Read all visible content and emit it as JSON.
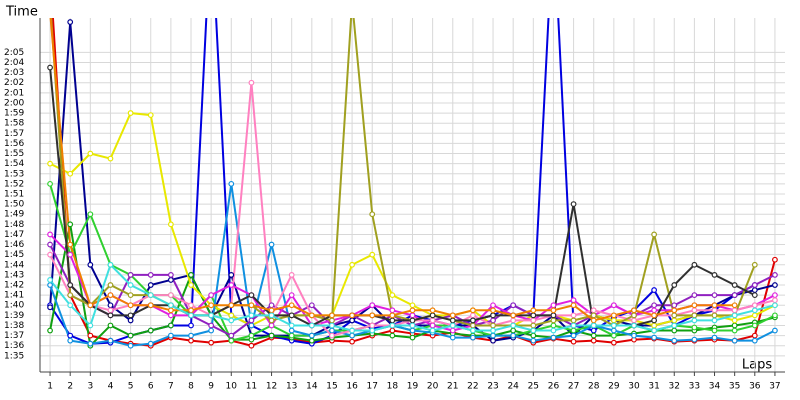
{
  "chart_data": {
    "type": "line",
    "y_label": "Time",
    "x_label": "Laps",
    "x": [
      1,
      2,
      3,
      4,
      5,
      6,
      7,
      8,
      9,
      10,
      11,
      12,
      13,
      14,
      15,
      16,
      17,
      18,
      19,
      20,
      21,
      22,
      23,
      24,
      25,
      26,
      27,
      28,
      29,
      30,
      31,
      32,
      33,
      34,
      35,
      36,
      37
    ],
    "xlim": [
      0.5,
      37.5
    ],
    "xticks": [
      1,
      2,
      3,
      4,
      5,
      6,
      7,
      8,
      9,
      10,
      11,
      12,
      13,
      14,
      15,
      16,
      17,
      18,
      19,
      20,
      21,
      22,
      23,
      24,
      25,
      26,
      27,
      28,
      29,
      30,
      31,
      32,
      33,
      34,
      35,
      36,
      37
    ],
    "ylim": [
      93.4,
      128.4
    ],
    "yticks": [
      {
        "value": 95,
        "label": "1:35"
      },
      {
        "value": 96,
        "label": "1:36"
      },
      {
        "value": 97,
        "label": "1:37"
      },
      {
        "value": 98,
        "label": "1:38"
      },
      {
        "value": 99,
        "label": "1:39"
      },
      {
        "value": 100,
        "label": "1:40"
      },
      {
        "value": 101,
        "label": "1:41"
      },
      {
        "value": 102,
        "label": "1:42"
      },
      {
        "value": 103,
        "label": "1:43"
      },
      {
        "value": 104,
        "label": "1:44"
      },
      {
        "value": 105,
        "label": "1:45"
      },
      {
        "value": 106,
        "label": "1:46"
      },
      {
        "value": 107,
        "label": "1:47"
      },
      {
        "value": 108,
        "label": "1:48"
      },
      {
        "value": 109,
        "label": "1:49"
      },
      {
        "value": 110,
        "label": "1:50"
      },
      {
        "value": 111,
        "label": "1:51"
      },
      {
        "value": 112,
        "label": "1:52"
      },
      {
        "value": 113,
        "label": "1:53"
      },
      {
        "value": 114,
        "label": "1:54"
      },
      {
        "value": 115,
        "label": "1:55"
      },
      {
        "value": 116,
        "label": "1:56"
      },
      {
        "value": 117,
        "label": "1:57"
      },
      {
        "value": 118,
        "label": "1:58"
      },
      {
        "value": 119,
        "label": "1:59"
      },
      {
        "value": 120,
        "label": "2:00"
      },
      {
        "value": 121,
        "label": "2:01"
      },
      {
        "value": 122,
        "label": "2:02"
      },
      {
        "value": 123,
        "label": "2:03"
      },
      {
        "value": 124,
        "label": "2:04"
      },
      {
        "value": 125,
        "label": "2:05"
      }
    ],
    "grid": true,
    "series": [
      {
        "color": "#e00000",
        "values": [
          133,
          101,
          97,
          96.5,
          96.2,
          96,
          96.8,
          96.5,
          96.3,
          96.5,
          96,
          96.8,
          96.7,
          96.3,
          96.5,
          96.4,
          97,
          97.5,
          97.2,
          97,
          97.3,
          96.8,
          96.5,
          97,
          96.3,
          96.7,
          96.4,
          96.5,
          96.3,
          96.6,
          96.7,
          96.4,
          96.5,
          96.6,
          96.5,
          97,
          104.5
        ]
      },
      {
        "color": "#0000e0",
        "values": [
          100,
          97,
          96.2,
          96.3,
          97,
          97.5,
          98,
          98,
          138,
          99,
          98,
          97,
          96.5,
          96.2,
          97,
          98.5,
          97.7,
          98,
          99,
          98.5,
          98,
          98.5,
          99,
          100,
          99,
          138,
          98,
          97.5,
          98.8,
          99.5,
          101.5,
          98,
          99,
          99.5,
          101,
          102,
          null
        ]
      },
      {
        "color": "#000090",
        "values": [
          99.8,
          128,
          104,
          100,
          98.5,
          102,
          102.5,
          103,
          99,
          103,
          97,
          97,
          97,
          97,
          98,
          98.5,
          100,
          98,
          98,
          98,
          98,
          98,
          96.5,
          96.8,
          97.5,
          99,
          97,
          99,
          98.5,
          98,
          98,
          98.5,
          99,
          100,
          101,
          101.5,
          102
        ]
      },
      {
        "color": "#10a010",
        "values": [
          97.5,
          108,
          96,
          98,
          97,
          97.5,
          98,
          103,
          99,
          96.6,
          96.6,
          97,
          96.8,
          96.5,
          96.8,
          97,
          97.2,
          97,
          96.8,
          97.5,
          97.2,
          97,
          97,
          97.5,
          97,
          96.8,
          97.5,
          97,
          97,
          97.2,
          97.5,
          97.5,
          97.5,
          97.8,
          98,
          98.3,
          98.8
        ]
      },
      {
        "color": "#30d030",
        "values": [
          112,
          105,
          109,
          104,
          103,
          101,
          101,
          99,
          101,
          96.5,
          97,
          98,
          97,
          97,
          97.5,
          97.5,
          98,
          98,
          97.5,
          98,
          98,
          97.5,
          97,
          97,
          97.5,
          98,
          97.5,
          98,
          97,
          98,
          97.5,
          98,
          97.8,
          97.5,
          97.5,
          98,
          99
        ]
      },
      {
        "color": "#e8e800",
        "values": [
          114,
          113,
          115,
          114.5,
          119,
          118.8,
          108,
          102,
          100,
          99,
          98,
          99,
          99,
          99,
          99,
          104,
          105,
          101,
          100,
          99,
          99,
          99.5,
          98,
          98,
          99,
          99,
          98.5,
          99,
          98.5,
          98.5,
          98,
          98.5,
          99,
          99,
          98.5,
          99,
          100
        ]
      },
      {
        "color": "#1090e0",
        "values": [
          102,
          96.5,
          96.2,
          96.5,
          96,
          96.2,
          97,
          97,
          97.5,
          112,
          98,
          106,
          97.5,
          97,
          97.5,
          97,
          97.5,
          98,
          97.5,
          97.3,
          96.8,
          96.8,
          97,
          97,
          96.5,
          96.8,
          97,
          98,
          97.5,
          97,
          96.8,
          96.5,
          96.6,
          96.8,
          96.5,
          96.5,
          97.5
        ]
      },
      {
        "color": "#9020c0",
        "values": [
          106,
          102,
          100,
          99,
          103,
          103,
          103,
          99,
          98,
          97,
          98.5,
          100,
          99,
          100,
          98,
          99,
          98,
          99,
          98,
          98.5,
          99,
          98,
          98.5,
          100,
          99,
          99,
          98,
          99,
          100,
          99,
          100,
          100,
          101,
          101,
          101,
          102,
          103
        ]
      },
      {
        "color": "#e020e0",
        "values": [
          107,
          105,
          100,
          101,
          100,
          100,
          99,
          99,
          101,
          102,
          101,
          98,
          101,
          98,
          98.5,
          99,
          100,
          99.5,
          99,
          98,
          97.5,
          98,
          100,
          99,
          98.5,
          100,
          100.5,
          99,
          100,
          99,
          99.5,
          99.5,
          100,
          100,
          99.5,
          100,
          101
        ]
      },
      {
        "color": "#ff80c0",
        "values": [
          105,
          101,
          100,
          99.5,
          100,
          101,
          101,
          100,
          99,
          100,
          122,
          99,
          103,
          99,
          97,
          97.5,
          98,
          98,
          98.5,
          98.5,
          98,
          99,
          98,
          98.5,
          98.5,
          99,
          99,
          99.5,
          99,
          98.5,
          99,
          99,
          99.5,
          99.5,
          99.5,
          100,
          100.5
        ]
      },
      {
        "color": "#a0a020",
        "values": [
          130,
          101,
          100,
          102,
          101,
          101,
          100,
          99,
          99,
          100,
          100,
          98.5,
          99,
          99,
          98.5,
          130,
          109,
          99,
          98.5,
          99,
          98.5,
          98,
          98,
          98,
          98,
          98.5,
          98.5,
          99,
          98,
          99,
          107,
          99,
          99,
          99,
          99,
          104,
          null
        ]
      },
      {
        "color": "#303030",
        "values": [
          123.5,
          102,
          100,
          99,
          99,
          100,
          100,
          99,
          99,
          100,
          101,
          99,
          99,
          98,
          99,
          99,
          99,
          98.5,
          98.5,
          99,
          98.5,
          98.5,
          99,
          99,
          99,
          99,
          110,
          98,
          98,
          98,
          98.5,
          102,
          104,
          103,
          102,
          101,
          null
        ]
      },
      {
        "color": "#f08000",
        "values": [
          129,
          106,
          100,
          101,
          100,
          100,
          99.5,
          99.5,
          100,
          100,
          100,
          99.5,
          100,
          99,
          99,
          99,
          99,
          99,
          99.5,
          99.5,
          99,
          99.5,
          99.5,
          99,
          99.5,
          99.5,
          100,
          98.5,
          99,
          99.5,
          99,
          99.5,
          100,
          100,
          100,
          null,
          null
        ]
      },
      {
        "color": "#40e0e0",
        "values": [
          102.5,
          100,
          98,
          104,
          102,
          101,
          100,
          99,
          99,
          98.5,
          99,
          99,
          98,
          98,
          98,
          97.5,
          97.5,
          98,
          98,
          97.5,
          98,
          97.5,
          97.5,
          98,
          97.5,
          97.5,
          98,
          98,
          98,
          98,
          97.5,
          98,
          98.5,
          98.5,
          99,
          99.5,
          100
        ]
      }
    ]
  }
}
